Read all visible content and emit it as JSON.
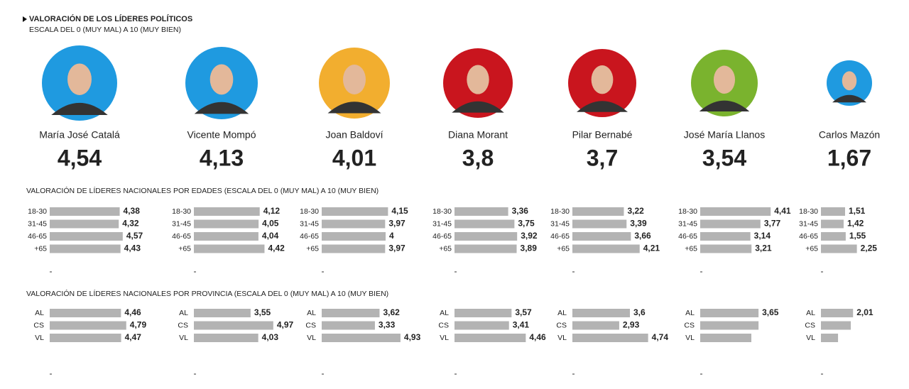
{
  "header": {
    "title": "VALORACIÓN DE LOS LÍDERES  POLÍTICOS",
    "subtitle": "ESCALA DEL 0 (MUY MAL)  A 10 (MUY BIEN)"
  },
  "age_section_title": "VALORACIÓN DE LÍDERES NACIONALES POR EDADES (ESCALA DEL 0 (MUY MAL)  A 10 (MUY BIEN)",
  "province_section_title": "VALORACIÓN DE LÍDERES NACIONALES POR PROVINCIA (ESCALA DEL 0 (MUY MAL)  A 10 (MUY BIEN)",
  "age_groups": [
    "18-30",
    "31-45",
    "46-65",
    "+65"
  ],
  "provinces": [
    "AL",
    "CS",
    "VL"
  ],
  "bar_color": "#b3b3b3",
  "leaders": [
    {
      "name": "María José Catalá",
      "color": "#1f9ae0",
      "score": 4.54,
      "score_label": "4,54",
      "ages": [
        4.38,
        4.32,
        4.57,
        4.43
      ],
      "age_labels": [
        "4,38",
        "4,32",
        "4,57",
        "4,43"
      ],
      "provinces": [
        4.46,
        4.79,
        4.47
      ],
      "province_labels": [
        "4,46",
        "4,79",
        "4,47"
      ]
    },
    {
      "name": "Vicente Mompó",
      "color": "#1f9ae0",
      "score": 4.13,
      "score_label": "4,13",
      "ages": [
        4.12,
        4.05,
        4.04,
        4.42
      ],
      "age_labels": [
        "4,12",
        "4,05",
        "4,04",
        "4,42"
      ],
      "provinces": [
        3.55,
        4.97,
        4.03
      ],
      "province_labels": [
        "3,55",
        "4,97",
        "4,03"
      ]
    },
    {
      "name": "Joan Baldoví",
      "color": "#f2ae2f",
      "score": 4.01,
      "score_label": "4,01",
      "ages": [
        4.15,
        3.97,
        4,
        3.97
      ],
      "age_labels": [
        "4,15",
        "3,97",
        "4",
        "3,97"
      ],
      "provinces": [
        3.62,
        3.33,
        4.93
      ],
      "province_labels": [
        "3,62",
        "3,33",
        "4,93"
      ]
    },
    {
      "name": "Diana Morant",
      "color": "#c9151e",
      "score": 3.8,
      "score_label": "3,8",
      "ages": [
        3.36,
        3.75,
        3.92,
        3.89
      ],
      "age_labels": [
        "3,36",
        "3,75",
        "3,92",
        "3,89"
      ],
      "provinces": [
        3.57,
        3.41,
        4.46
      ],
      "province_labels": [
        "3,57",
        "3,41",
        "4,46"
      ]
    },
    {
      "name": "Pilar Bernabé",
      "color": "#c9151e",
      "score": 3.7,
      "score_label": "3,7",
      "ages": [
        3.22,
        3.39,
        3.66,
        4.21
      ],
      "age_labels": [
        "3,22",
        "3,39",
        "3,66",
        "4,21"
      ],
      "provinces": [
        3.6,
        2.93,
        4.74
      ],
      "province_labels": [
        "3,6",
        "2,93",
        "4,74"
      ]
    },
    {
      "name": "José María Llanos",
      "color": "#7ab32e",
      "score": 3.54,
      "score_label": "3,54",
      "ages": [
        4.41,
        3.77,
        3.14,
        3.21
      ],
      "age_labels": [
        "4,41",
        "3,77",
        "3,14",
        "3,21"
      ],
      "provinces": [
        3.65,
        3.65,
        3.2
      ],
      "province_labels": [
        "3,65",
        null,
        null
      ]
    },
    {
      "name": "Carlos Mazón",
      "color": "#1f9ae0",
      "score": 1.67,
      "score_label": "1,67",
      "ages": [
        1.51,
        1.42,
        1.55,
        2.25
      ],
      "age_labels": [
        "1,51",
        "1,42",
        "1,55",
        "2,25"
      ],
      "provinces": [
        2.01,
        1.87,
        1.07
      ],
      "province_labels": [
        "2,01",
        null,
        null
      ]
    }
  ]
}
